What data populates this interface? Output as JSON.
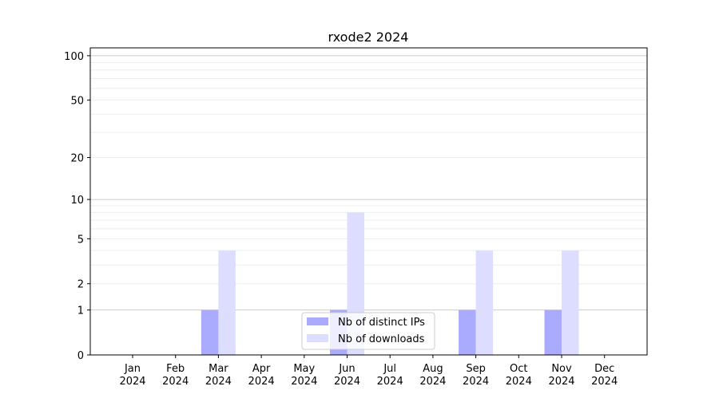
{
  "chart_data": {
    "type": "bar",
    "title": "rxode2 2024",
    "categories": [
      "Jan\n2024",
      "Feb\n2024",
      "Mar\n2024",
      "Apr\n2024",
      "May\n2024",
      "Jun\n2024",
      "Jul\n2024",
      "Aug\n2024",
      "Sep\n2024",
      "Oct\n2024",
      "Nov\n2024",
      "Dec\n2024"
    ],
    "series": [
      {
        "name": "Nb of distinct IPs",
        "color": "#aaaaff",
        "values": [
          0,
          0,
          1,
          0,
          0,
          1,
          0,
          0,
          1,
          0,
          1,
          0
        ]
      },
      {
        "name": "Nb of downloads",
        "color": "#ddddff",
        "values": [
          0,
          0,
          4,
          0,
          0,
          8,
          0,
          0,
          4,
          0,
          4,
          0
        ]
      }
    ],
    "yscale": "log(1+y)",
    "yticks": [
      0,
      1,
      2,
      5,
      10,
      20,
      50,
      100
    ],
    "ylim": [
      0,
      113
    ],
    "grid": true,
    "legend": "lower-center",
    "xlabel": "",
    "ylabel": ""
  }
}
